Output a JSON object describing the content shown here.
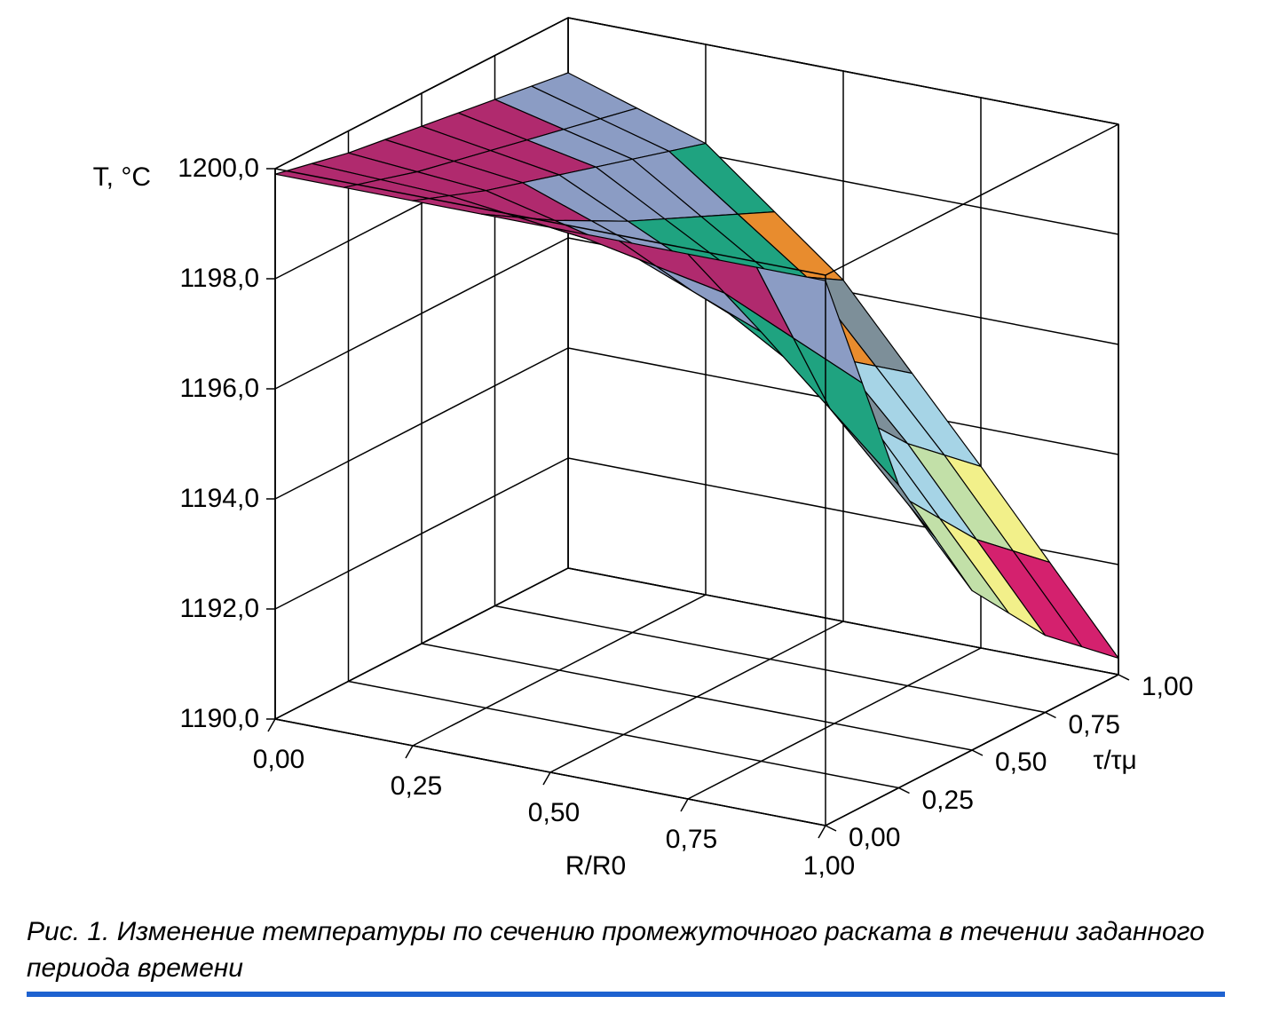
{
  "chart": {
    "type": "surface3d",
    "background_color": "#ffffff",
    "grid_color": "#000000",
    "grid_stroke_width": 1.5,
    "face_stroke_color": "#000000",
    "face_stroke_width": 1.2,
    "tick_fontsize": 30,
    "label_fontsize": 30,
    "caption_fontsize": 30,
    "caption_border_color": "#1e62d0",
    "axes": {
      "x": {
        "label": "R/R0",
        "ticks": [
          "0,00",
          "0,25",
          "0,50",
          "0,75",
          "1,00"
        ],
        "min": 0.0,
        "max": 1.0
      },
      "y": {
        "label": "τ/τμ",
        "ticks": [
          "0,00",
          "0,25",
          "0,50",
          "0,75",
          "1,00"
        ],
        "min": 0.0,
        "max": 1.0
      },
      "z": {
        "label": "T, °C",
        "ticks": [
          "1190,0",
          "1192,0",
          "1194,0",
          "1196,0",
          "1198,0",
          "1200,0"
        ],
        "min": 1190.0,
        "max": 1200.0
      }
    },
    "x_values": [
      0.0,
      0.25,
      0.5,
      0.75,
      1.0
    ],
    "y_values": [
      0.0,
      0.25,
      0.5,
      0.75,
      1.0
    ],
    "z_grid": [
      [
        1199.9,
        1199.9,
        1199.9,
        1199.9,
        1199.9
      ],
      [
        1199.6,
        1199.4,
        1198.8,
        1197.8,
        1195.5
      ],
      [
        1199.4,
        1199.0,
        1197.8,
        1195.8,
        1192.9
      ],
      [
        1199.2,
        1198.6,
        1197.0,
        1194.4,
        1191.4
      ],
      [
        1199.0,
        1198.2,
        1196.2,
        1193.3,
        1190.3
      ]
    ],
    "color_bands": [
      {
        "min": 1190.0,
        "max": 1191.0,
        "color": "#6bbf3a"
      },
      {
        "min": 1191.0,
        "max": 1192.0,
        "color": "#d4216e"
      },
      {
        "min": 1192.0,
        "max": 1193.0,
        "color": "#f2f08a"
      },
      {
        "min": 1193.0,
        "max": 1194.0,
        "color": "#c2e0a8"
      },
      {
        "min": 1194.0,
        "max": 1195.0,
        "color": "#a6d4e6"
      },
      {
        "min": 1195.0,
        "max": 1196.0,
        "color": "#7d8f99"
      },
      {
        "min": 1196.0,
        "max": 1197.0,
        "color": "#e88c2e"
      },
      {
        "min": 1197.0,
        "max": 1198.0,
        "color": "#1fa380"
      },
      {
        "min": 1198.0,
        "max": 1199.0,
        "color": "#8b9cc4"
      },
      {
        "min": 1199.0,
        "max": 1200.0,
        "color": "#b02a6e"
      }
    ],
    "subdivide": 2
  },
  "caption": "Рис. 1. Изменение температуры по сечению промежуточного раската в течении заданного периода времени"
}
